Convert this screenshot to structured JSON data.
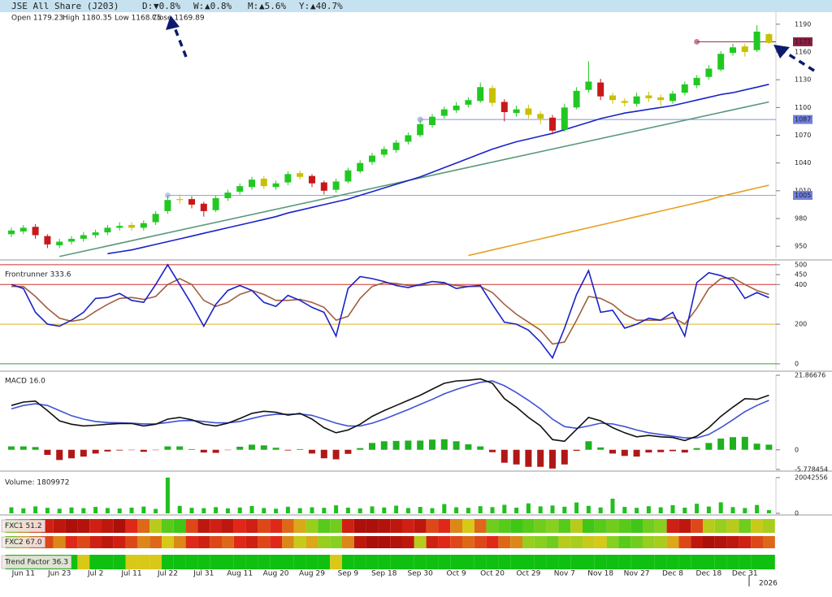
{
  "header": {
    "title": "JSE All Share (J203)",
    "changes": [
      {
        "label": "D:",
        "value": "▼0.8%",
        "color": "#e02020"
      },
      {
        "label": "W:",
        "value": "▲0.8%",
        "color": "#20a020"
      },
      {
        "label": "M:",
        "value": "▲5.6%",
        "color": "#20a020"
      },
      {
        "label": "Y:",
        "value": "▲40.7%",
        "color": "#20a020"
      }
    ],
    "ohlc": [
      "Open 1179.23",
      "High 1180.35",
      "Low 1168.75",
      "Close 1169.89"
    ]
  },
  "chart_data": [
    {
      "type": "candlestick",
      "categories": [
        null,
        "Jun 11",
        null,
        null,
        "Jun 23",
        null,
        null,
        "Jul 2",
        null,
        null,
        "Jul 11",
        null,
        null,
        "Jul 22",
        null,
        null,
        "Jul 31",
        null,
        null,
        "Aug 11",
        null,
        null,
        "Aug 20",
        null,
        null,
        "Aug 29",
        null,
        null,
        "Sep 9",
        null,
        null,
        "Sep 18",
        null,
        null,
        "Sep 30",
        null,
        null,
        "Oct 9",
        null,
        null,
        "Oct 20",
        null,
        null,
        "Oct 29",
        null,
        null,
        "Nov 7",
        null,
        null,
        "Nov 18",
        null,
        null,
        "Nov 27",
        null,
        null,
        "Dec 8",
        null,
        null,
        "Dec 18",
        null,
        null,
        "Dec 31",
        null,
        null
      ],
      "year_label": "2026",
      "open": [
        963,
        966,
        971,
        961,
        951,
        955,
        958,
        962,
        965,
        970,
        973,
        970,
        976,
        988,
        1001,
        1001,
        996,
        989,
        1002,
        1009,
        1014,
        1023,
        1014,
        1019,
        1029,
        1026,
        1019,
        1011,
        1020,
        1031,
        1041,
        1049,
        1054,
        1063,
        1070,
        1081,
        1091,
        1097,
        1103,
        1107,
        1121,
        1106,
        1094,
        1099,
        1093,
        1089,
        1076,
        1100,
        1119,
        1127,
        1113,
        1107,
        1104,
        1113,
        1111,
        1107,
        1116,
        1124,
        1133,
        1141,
        1159,
        1166,
        1162,
        1179.23
      ],
      "high": [
        970,
        973,
        974,
        963,
        958,
        961,
        965,
        968,
        973,
        976,
        976,
        978,
        988,
        1005,
        1006,
        1004,
        998,
        1005,
        1011,
        1018,
        1025,
        1026,
        1021,
        1031,
        1032,
        1028,
        1021,
        1023,
        1035,
        1043,
        1051,
        1058,
        1065,
        1073,
        1086,
        1093,
        1101,
        1106,
        1111,
        1127,
        1124,
        1109,
        1102,
        1103,
        1096,
        1092,
        1104,
        1122,
        1150,
        1131,
        1116,
        1110,
        1116,
        1117,
        1114,
        1118,
        1128,
        1135,
        1146,
        1161,
        1169,
        1169,
        1189,
        1180.35
      ],
      "low": [
        960,
        963,
        958,
        948,
        948,
        952,
        955,
        959,
        962,
        967,
        967,
        967,
        973,
        985,
        996,
        991,
        982,
        987,
        999,
        1006,
        1011,
        1012,
        1011,
        1016,
        1022,
        1014,
        1006,
        1008,
        1018,
        1029,
        1038,
        1046,
        1051,
        1060,
        1068,
        1078,
        1088,
        1094,
        1100,
        1105,
        1101,
        1085,
        1090,
        1088,
        1082,
        1071,
        1074,
        1098,
        1116,
        1108,
        1104,
        1101,
        1101,
        1106,
        1102,
        1104,
        1113,
        1121,
        1130,
        1139,
        1156,
        1155,
        1160,
        1168.75
      ],
      "close": [
        967,
        970,
        962,
        952,
        955,
        958,
        962,
        965,
        970,
        972,
        970,
        975,
        985,
        1000,
        1000,
        995,
        988,
        1002,
        1008,
        1015,
        1022,
        1015,
        1018,
        1028,
        1025,
        1018,
        1010,
        1020,
        1032,
        1040,
        1048,
        1055,
        1062,
        1070,
        1082,
        1090,
        1098,
        1102,
        1108,
        1122,
        1105,
        1095,
        1098,
        1092,
        1088,
        1075,
        1100,
        1118,
        1128,
        1112,
        1108,
        1105,
        1112,
        1110,
        1108,
        1115,
        1125,
        1132,
        1142,
        1158,
        1165,
        1160,
        1182,
        1169.89
      ],
      "up_color": "#22c822",
      "down_color": "#c8c000",
      "strong_down_color": "#c81818",
      "series": [
        {
          "color": "#1a22c8",
          "values": [
            null,
            null,
            null,
            null,
            null,
            null,
            null,
            null,
            942,
            944,
            946,
            949,
            952,
            955,
            958,
            961,
            964,
            967,
            970,
            973,
            976,
            979,
            982,
            986,
            989,
            992,
            995,
            998,
            1001,
            1005,
            1009,
            1013,
            1017,
            1021,
            1025,
            1030,
            1035,
            1040,
            1045,
            1050,
            1055,
            1059,
            1063,
            1066,
            1069,
            1072,
            1076,
            1080,
            1084,
            1088,
            1091,
            1094,
            1096,
            1098,
            1100,
            1102,
            1105,
            1108,
            1111,
            1114,
            1116,
            1119,
            1122,
            1125
          ]
        },
        {
          "color": "#e8a020",
          "values": [
            null,
            null,
            null,
            null,
            null,
            null,
            null,
            null,
            null,
            null,
            null,
            null,
            null,
            null,
            null,
            null,
            null,
            null,
            null,
            null,
            null,
            null,
            null,
            null,
            null,
            null,
            null,
            null,
            null,
            null,
            null,
            null,
            null,
            null,
            null,
            null,
            null,
            null,
            940,
            943,
            946,
            949,
            952,
            955,
            958,
            961,
            964,
            967,
            970,
            973,
            976,
            979,
            982,
            985,
            988,
            991,
            994,
            997,
            1000,
            1004,
            1007,
            1010,
            1013,
            1016
          ]
        }
      ],
      "trendlines": [
        {
          "color": "#5a9a7a",
          "x": [
            4,
            63
          ],
          "values": [
            939,
            1106
          ]
        }
      ],
      "hlines": [
        {
          "value": 1171,
          "start": 57,
          "color": "#a03048",
          "label_color": "#8a2040"
        },
        {
          "value": 1087,
          "start": 34,
          "color": "#8090d8",
          "label_color": "#7080e0"
        },
        {
          "value": 1005,
          "start": 13,
          "color": "#90a8e0",
          "label_color": "#7080e0"
        }
      ],
      "ylim": [
        937,
        1203
      ],
      "yticks": [
        950,
        980,
        1010,
        1040,
        1070,
        1100,
        1130,
        1160,
        1190
      ]
    },
    {
      "type": "line",
      "title": "Frontrunner 333.6",
      "series": [
        {
          "color": "#1a22c8",
          "values": [
            400,
            380,
            260,
            200,
            190,
            220,
            260,
            330,
            335,
            355,
            320,
            310,
            400,
            500,
            400,
            300,
            190,
            300,
            370,
            395,
            370,
            310,
            290,
            345,
            320,
            285,
            260,
            140,
            380,
            440,
            430,
            415,
            395,
            385,
            400,
            415,
            410,
            380,
            390,
            395,
            300,
            210,
            200,
            170,
            110,
            30,
            180,
            350,
            470,
            260,
            270,
            180,
            200,
            230,
            220,
            260,
            140,
            410,
            460,
            445,
            420,
            330,
            360,
            333.6
          ]
        },
        {
          "color": "#a06040",
          "values": [
            390,
            390,
            340,
            280,
            230,
            215,
            225,
            265,
            300,
            330,
            335,
            325,
            340,
            400,
            430,
            400,
            320,
            290,
            310,
            350,
            370,
            350,
            320,
            320,
            325,
            310,
            285,
            220,
            240,
            330,
            390,
            410,
            405,
            395,
            395,
            400,
            405,
            395,
            390,
            390,
            360,
            300,
            250,
            210,
            170,
            100,
            110,
            220,
            340,
            330,
            300,
            250,
            220,
            220,
            220,
            235,
            200,
            280,
            380,
            430,
            435,
            400,
            370,
            350
          ]
        }
      ],
      "hlines": [
        {
          "value": 500,
          "color": "#d03030"
        },
        {
          "value": 400,
          "color": "#d03030"
        },
        {
          "value": 200,
          "color": "#e0b020"
        },
        {
          "value": 0,
          "color": "#30a030"
        }
      ],
      "ylim": [
        -29,
        516
      ],
      "yticks": [
        0,
        200,
        400,
        450,
        500
      ]
    },
    {
      "type": "macd",
      "title": "MACD 16.0",
      "series": [
        {
          "color": "#111111",
          "values": [
            13,
            14,
            14.3,
            11.5,
            8.5,
            7.5,
            7,
            7.2,
            7.5,
            7.7,
            7.7,
            7,
            7.5,
            9,
            9.5,
            8.8,
            7.5,
            7,
            7.8,
            9.2,
            10.7,
            11.3,
            11,
            10.2,
            10.7,
            9,
            6.5,
            5,
            5.8,
            7.5,
            9.8,
            11.5,
            13,
            14.5,
            16,
            17.8,
            19.5,
            20.2,
            20.4,
            20.8,
            19.5,
            15,
            12.5,
            9.5,
            7,
            3,
            2.5,
            6,
            9.5,
            8.5,
            6.5,
            5,
            3.8,
            4.2,
            3.8,
            3.6,
            2.7,
            4,
            6.5,
            9.8,
            12.5,
            15,
            14.8,
            16
          ]
        },
        {
          "color": "#4050d8",
          "values": [
            12,
            13,
            13.5,
            13,
            11.5,
            10,
            9,
            8.3,
            8,
            7.9,
            7.8,
            7.6,
            7.6,
            8,
            8.5,
            8.6,
            8.3,
            7.9,
            7.9,
            8.3,
            9.2,
            10,
            10.4,
            10.4,
            10.5,
            10.1,
            9,
            7.8,
            7,
            7,
            7.8,
            9,
            10.4,
            11.8,
            13.3,
            14.8,
            16.4,
            17.7,
            18.8,
            19.8,
            20.2,
            18.8,
            16.8,
            14.5,
            12,
            9,
            6.8,
            6.3,
            7,
            7.8,
            7.6,
            6.8,
            5.8,
            5,
            4.5,
            4,
            3.5,
            3.5,
            4.5,
            6.5,
            8.8,
            11.2,
            13,
            14.5
          ]
        }
      ],
      "histogram": {
        "up_color": "#20b020",
        "down_color": "#b01818",
        "values": [
          1,
          1,
          0.8,
          -1.5,
          -3,
          -2.5,
          -2,
          -1.1,
          -0.5,
          -0.2,
          -0.1,
          -0.6,
          -0.1,
          1,
          1,
          0.2,
          -0.8,
          -0.9,
          -0.1,
          0.9,
          1.5,
          1.3,
          0.6,
          -0.2,
          0.2,
          -1.1,
          -2.5,
          -2.8,
          -1.2,
          0.5,
          2,
          2.5,
          2.6,
          2.7,
          2.7,
          3,
          3.1,
          2.5,
          1.6,
          1,
          -0.7,
          -3.8,
          -4.3,
          -5,
          -5,
          -5.5,
          -4.3,
          -0.3,
          2.5,
          0.7,
          -1.1,
          -1.8,
          -2,
          -0.8,
          -0.7,
          -0.4,
          -0.8,
          0.5,
          2,
          3.3,
          3.7,
          3.8,
          1.8,
          1.5
        ]
      },
      "ylim": [
        -5.778454,
        21.86676
      ],
      "yticks": [
        -5.778454,
        0,
        21.86676
      ]
    },
    {
      "type": "bar",
      "title": "Volume: 1809972",
      "color": "#20c020",
      "values": [
        3400000,
        2800000,
        3900000,
        3100000,
        2600000,
        3300000,
        2900000,
        3600000,
        3000000,
        2700000,
        3200000,
        3800000,
        2500000,
        20042556,
        4200000,
        3100000,
        2900000,
        3500000,
        2800000,
        3300000,
        4100000,
        3000000,
        2600000,
        3700000,
        2900000,
        3400000,
        3100000,
        4500000,
        3200000,
        2800000,
        3900000,
        3300000,
        4300000,
        3000000,
        3600000,
        2900000,
        5200000,
        3400000,
        3100000,
        4000000,
        3500000,
        4800000,
        3200000,
        5600000,
        3900000,
        4400000,
        3700000,
        6100000,
        4200000,
        3300000,
        8200000,
        3600000,
        3100000,
        4000000,
        3400000,
        4600000,
        3200000,
        5400000,
        3800000,
        6200000,
        3500000,
        3000000,
        4700000,
        1809972
      ],
      "ylim": [
        0,
        20042556
      ],
      "yticks": [
        0,
        20042556
      ]
    },
    {
      "type": "heatmap",
      "title": "FXC1 51.2",
      "zlim": [
        0,
        100
      ],
      "colorscale": [
        "#8a0000",
        "#e02818",
        "#d8c818",
        "#88d020",
        "#10c010"
      ],
      "values": [
        70,
        40,
        30,
        20,
        15,
        10,
        12,
        20,
        15,
        10,
        25,
        35,
        60,
        85,
        90,
        30,
        15,
        20,
        15,
        25,
        20,
        30,
        25,
        35,
        45,
        70,
        85,
        80,
        20,
        10,
        10,
        12,
        15,
        20,
        15,
        30,
        25,
        40,
        50,
        35,
        80,
        85,
        90,
        85,
        80,
        75,
        85,
        60,
        90,
        85,
        80,
        85,
        90,
        80,
        75,
        20,
        15,
        30,
        60,
        70,
        60,
        80,
        55,
        65
      ]
    },
    {
      "type": "heatmap",
      "title": "FXC2 67.0",
      "zlim": [
        0,
        100
      ],
      "colorscale": [
        "#8a0000",
        "#e02818",
        "#d8c818",
        "#88d020",
        "#10c010"
      ],
      "values": [
        80,
        45,
        35,
        30,
        40,
        25,
        30,
        20,
        15,
        20,
        30,
        40,
        35,
        50,
        40,
        25,
        20,
        30,
        35,
        25,
        20,
        30,
        25,
        40,
        55,
        45,
        70,
        75,
        40,
        15,
        10,
        10,
        12,
        15,
        60,
        20,
        25,
        30,
        35,
        30,
        25,
        35,
        40,
        70,
        75,
        80,
        60,
        65,
        55,
        50,
        75,
        85,
        80,
        70,
        65,
        45,
        30,
        15,
        10,
        12,
        15,
        20,
        30,
        35
      ]
    },
    {
      "type": "heatmap",
      "title": "Trend Factor 36.3",
      "zlim": [
        0,
        100
      ],
      "colorscale": [
        "#8a0000",
        "#e02818",
        "#d8c818",
        "#88d020",
        "#10c010"
      ],
      "values": [
        100,
        100,
        100,
        100,
        100,
        100,
        50,
        100,
        100,
        100,
        50,
        50,
        50,
        100,
        100,
        100,
        100,
        100,
        100,
        100,
        100,
        100,
        100,
        100,
        100,
        100,
        100,
        50,
        100,
        100,
        100,
        100,
        100,
        100,
        100,
        100,
        100,
        100,
        100,
        100,
        100,
        100,
        100,
        100,
        100,
        100,
        100,
        100,
        100,
        100,
        100,
        100,
        100,
        100,
        100,
        100,
        100,
        100,
        100,
        100,
        100,
        100,
        100,
        100
      ]
    }
  ]
}
